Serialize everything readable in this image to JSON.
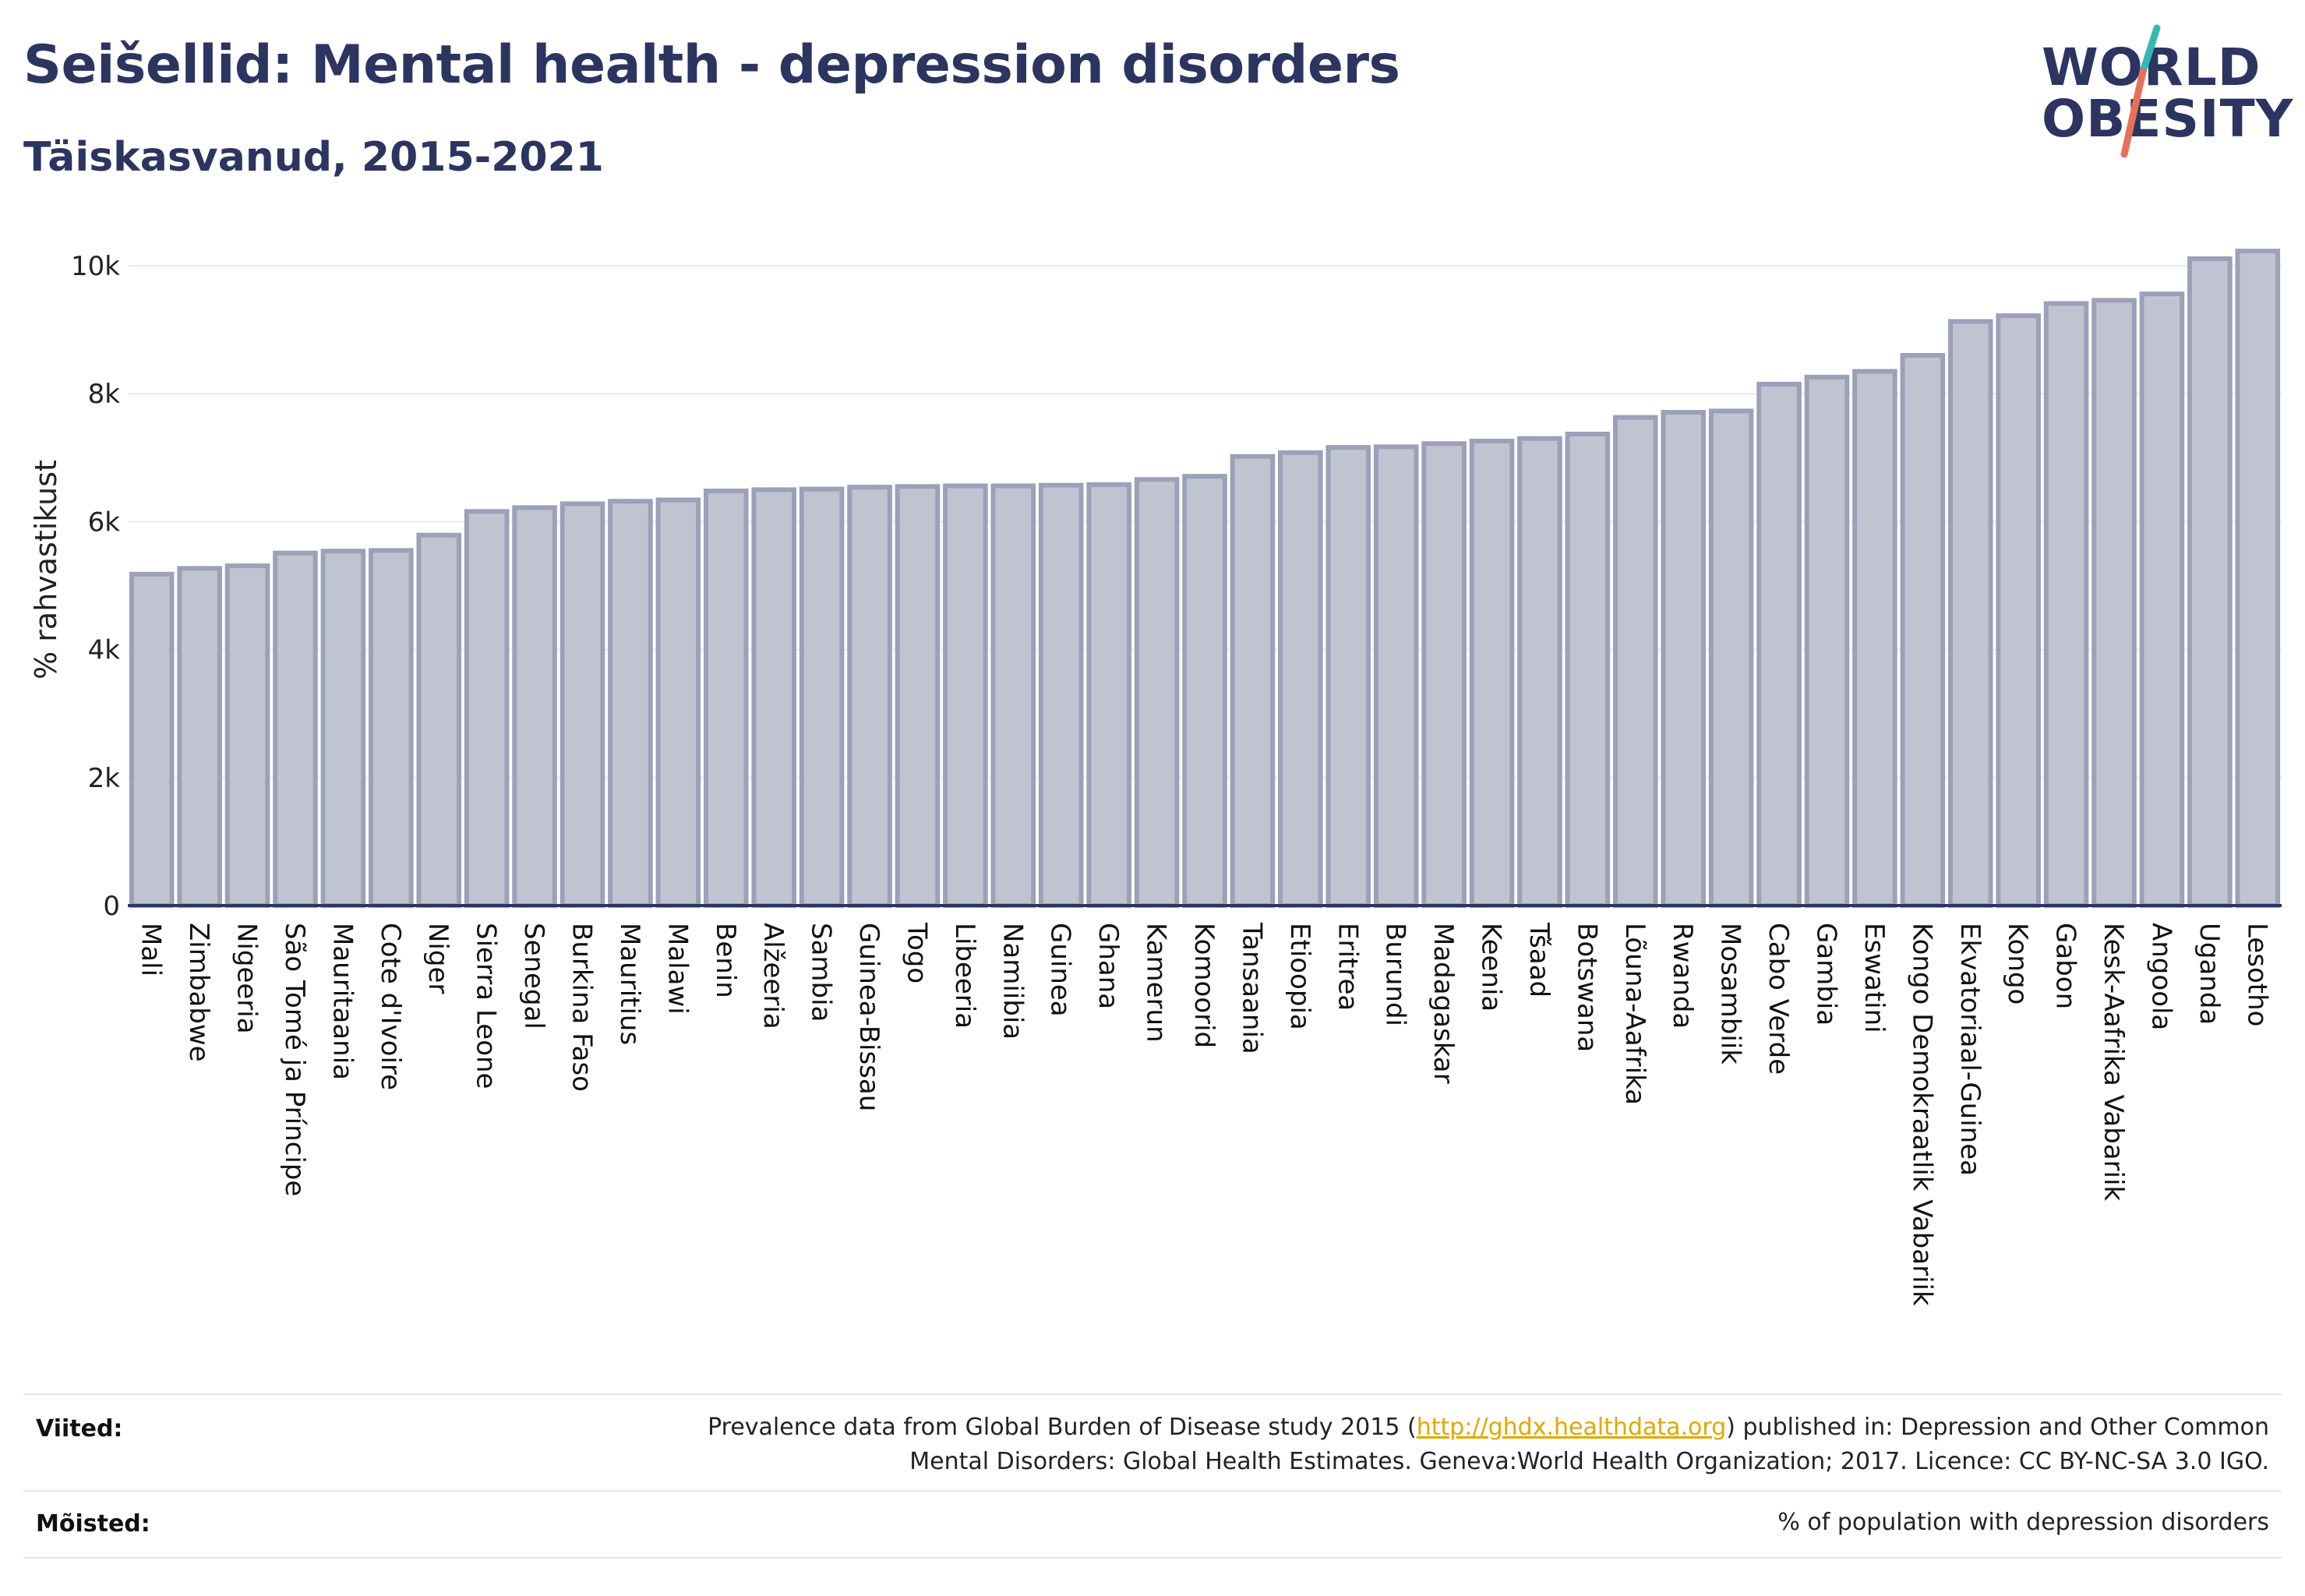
{
  "header": {
    "title": "Seišellid: Mental health - depression disorders",
    "subtitle": "Täiskasvanud, 2015-2021"
  },
  "logo": {
    "line1": "WORLD",
    "line2": "OBESITY",
    "accent_colors": [
      "#35b8b2",
      "#e8705a"
    ]
  },
  "colors": {
    "bar_fill": "#c0c4d1",
    "bar_stroke": "#9aa1b8",
    "axis": "#2b3560",
    "grid": "#e8e8ee",
    "link": "#e0a800"
  },
  "chart_data": {
    "type": "bar",
    "ylabel": "% rahvastikust",
    "ylim": [
      0,
      10500
    ],
    "yticks": [
      0,
      2000,
      4000,
      6000,
      8000,
      10000
    ],
    "ytick_labels": [
      "0",
      "2k",
      "4k",
      "6k",
      "8k",
      "10k"
    ],
    "grid": true,
    "categories": [
      "Mali",
      "Zimbabwe",
      "Nigeeria",
      "São Tomé ja Príncipe",
      "Mauritaania",
      "Cote d'Ivoire",
      "Niger",
      "Sierra Leone",
      "Senegal",
      "Burkina Faso",
      "Mauritius",
      "Malawi",
      "Benin",
      "Alžeeria",
      "Sambia",
      "Guinea-Bissau",
      "Togo",
      "Libeeria",
      "Namiibia",
      "Guinea",
      "Ghana",
      "Kamerun",
      "Komoorid",
      "Tansaania",
      "Etioopia",
      "Eritrea",
      "Burundi",
      "Madagaskar",
      "Keenia",
      "Tšaad",
      "Botswana",
      "Lõuna-Aafrika",
      "Rwanda",
      "Mosambiik",
      "Cabo Verde",
      "Gambia",
      "Eswatini",
      "Kongo Demokraatlik Vabariik",
      "Ekvatoriaal-Guinea",
      "Kongo",
      "Gabon",
      "Kesk-Aafrika Vabariik",
      "Angoola",
      "Uganda",
      "Lesotho"
    ],
    "values": [
      5180,
      5270,
      5310,
      5510,
      5540,
      5550,
      5790,
      6160,
      6220,
      6280,
      6320,
      6340,
      6480,
      6500,
      6510,
      6540,
      6550,
      6560,
      6560,
      6570,
      6580,
      6660,
      6710,
      7020,
      7080,
      7160,
      7170,
      7220,
      7260,
      7300,
      7370,
      7630,
      7710,
      7730,
      8150,
      8260,
      8350,
      8600,
      9130,
      9220,
      9410,
      9460,
      9560,
      10110,
      10230
    ]
  },
  "footer": {
    "sources_label": "Viited:",
    "sources_text_before": "Prevalence data from Global Burden of Disease study 2015 (",
    "sources_link": "http://ghdx.healthdata.org",
    "sources_text_after": ") published in: Depression and Other Common",
    "sources_line2": "Mental Disorders: Global Health Estimates. Geneva:World Health Organization; 2017. Licence: CC BY-NC-SA 3.0 IGO.",
    "definitions_label": "Mõisted:",
    "definitions_text": "% of population with depression disorders"
  }
}
